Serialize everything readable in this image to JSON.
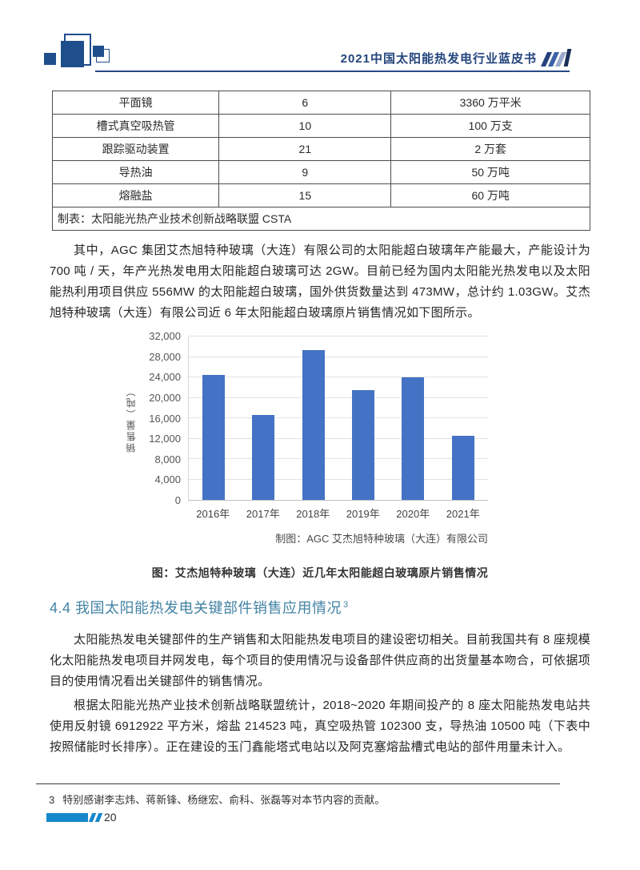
{
  "page": {
    "bg": "#ffffff",
    "accent_navy": "#24457d",
    "heading_color": "#4383a4",
    "footer_bar_color": "#1787cb"
  },
  "header": {
    "title": "2021中国太阳能热发电行业蓝皮书"
  },
  "table": {
    "rows": [
      [
        "平面镜",
        "6",
        "3360 万平米"
      ],
      [
        "槽式真空吸热管",
        "10",
        "100 万支"
      ],
      [
        "跟踪驱动装置",
        "21",
        "2 万套"
      ],
      [
        "导热油",
        "9",
        "50 万吨"
      ],
      [
        "熔融盐",
        "15",
        "60 万吨"
      ]
    ],
    "footer_note": "制表：太阳能光热产业技术创新战略联盟 CSTA"
  },
  "paragraphs": {
    "p1": "其中，AGC 集团艾杰旭特种玻璃（大连）有限公司的太阳能超白玻璃年产能最大，产能设计为 700 吨 / 天，年产光热发电用太阳能超白玻璃可达 2GW。目前已经为国内太阳能光热发电以及太阳能热利用项目供应 556MW 的太阳能超白玻璃，国外供货数量达到 473MW，总计约 1.03GW。艾杰旭特种玻璃（大连）有限公司近 6 年太阳能超白玻璃原片销售情况如下图所示。",
    "p2": "太阳能热发电关键部件的生产销售和太阳能热发电项目的建设密切相关。目前我国共有 8 座规模化太阳能热发电项目并网发电，每个项目的使用情况与设备部件供应商的出货量基本吻合，可依据项目的使用情况看出关键部件的销售情况。",
    "p3": "根据太阳能光热产业技术创新战略联盟统计，2018~2020 年期间投产的 8 座太阳能热发电站共使用反射镜 6912922 平方米，熔盐 214523 吨，真空吸热管 102300 支，导热油 10500 吨（下表中按照储能时长排序）。正在建设的玉门鑫能塔式电站以及阿克塞熔盐槽式电站的部件用量未计入。"
  },
  "chart_data": {
    "type": "bar",
    "title": "",
    "categories": [
      "2016年",
      "2017年",
      "2018年",
      "2019年",
      "2020年",
      "2021年"
    ],
    "values": [
      24500,
      16600,
      29300,
      21500,
      24000,
      12500
    ],
    "xlabel": "",
    "ylabel": "销售量（吨）",
    "ylim": [
      0,
      32000
    ],
    "yticks": [
      "32,000",
      "28,000",
      "24,000",
      "20,000",
      "16,000",
      "12,000",
      "8,000",
      "4,000",
      "0"
    ],
    "grid": true,
    "legend": "none",
    "bar_color": "#4472c4",
    "source": "制图：AGC 艾杰旭特种玻璃（大连）有限公司"
  },
  "figure": {
    "caption": "图：艾杰旭特种玻璃（大连）近几年太阳能超白玻璃原片销售情况"
  },
  "section": {
    "title": "4.4 我国太阳能热发电关键部件销售应用情况",
    "footnote_ref": "3"
  },
  "footnote": {
    "marker": "3",
    "text": "特别感谢李志炜、蒋新锋、杨继宏、俞科、张磊等对本节内容的贡献。"
  },
  "footer": {
    "page_number": "20"
  }
}
